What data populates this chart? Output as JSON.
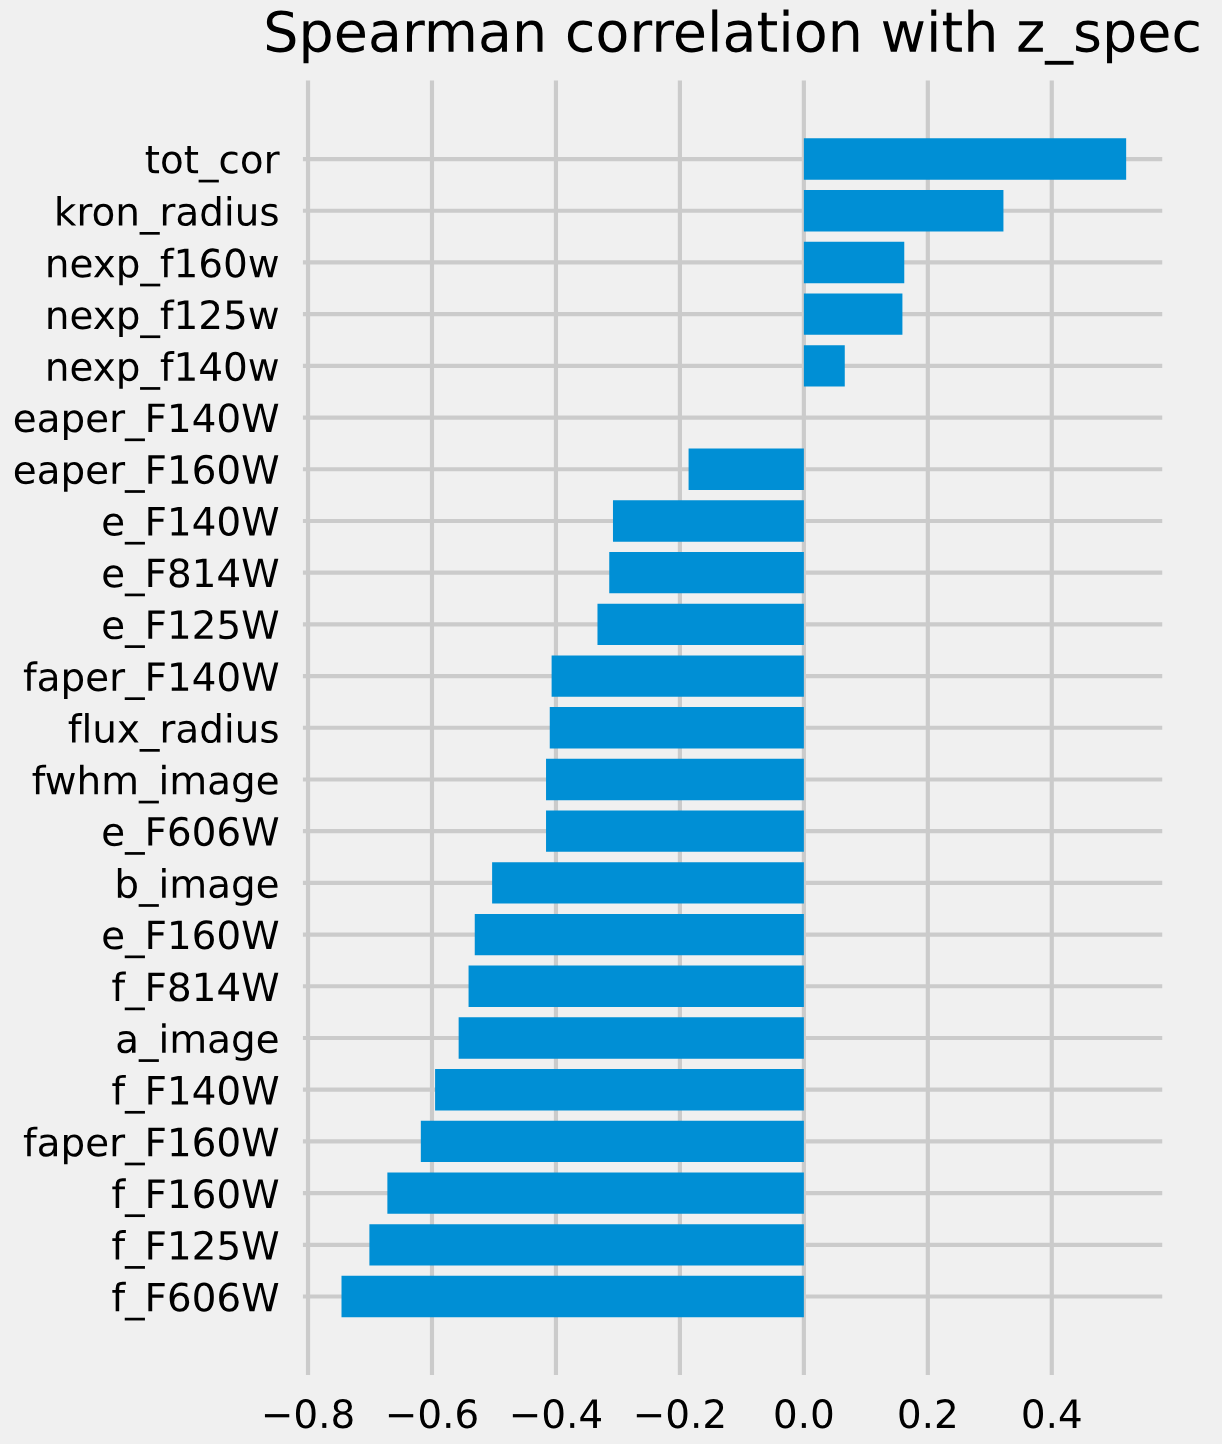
{
  "chart_data": {
    "type": "bar",
    "orientation": "horizontal",
    "title": "Spearman correlation with z_spec",
    "categories": [
      "tot_cor",
      "kron_radius",
      "nexp_f160w",
      "nexp_f125w",
      "nexp_f140w",
      "eaper_F140W",
      "eaper_F160W",
      "e_F140W",
      "e_F814W",
      "e_F125W",
      "faper_F140W",
      "flux_radius",
      "fwhm_image",
      "e_F606W",
      "b_image",
      "e_F160W",
      "f_F814W",
      "a_image",
      "f_F140W",
      "faper_F160W",
      "f_F160W",
      "f_F125W",
      "f_F606W"
    ],
    "values": [
      0.52,
      0.322,
      0.162,
      0.159,
      0.066,
      0.0,
      -0.186,
      -0.308,
      -0.314,
      -0.333,
      -0.407,
      -0.41,
      -0.416,
      -0.416,
      -0.503,
      -0.531,
      -0.541,
      -0.557,
      -0.595,
      -0.618,
      -0.672,
      -0.701,
      -0.746
    ],
    "color": "#008fd5",
    "xlim": [
      -0.81,
      0.58
    ],
    "xticks": [
      {
        "value": -0.8,
        "label": "−0.8"
      },
      {
        "value": -0.6,
        "label": "−0.6"
      },
      {
        "value": -0.4,
        "label": "−0.4"
      },
      {
        "value": -0.2,
        "label": "−0.2"
      },
      {
        "value": 0.0,
        "label": "0.0"
      },
      {
        "value": 0.2,
        "label": "0.2"
      },
      {
        "value": 0.4,
        "label": "0.4"
      }
    ],
    "grid": true
  }
}
